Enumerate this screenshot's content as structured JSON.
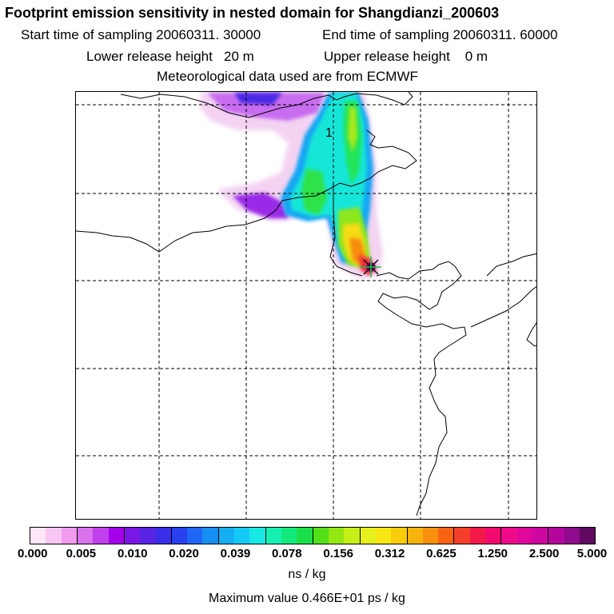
{
  "header": {
    "title": "Footprint emission sensitivity in nested domain for Shangdianzi_200603",
    "start_label": "Start time of sampling 20060311. 30000",
    "end_label": "End time of sampling 20060311. 60000",
    "lower_label": "Lower release height   20 m",
    "upper_label": "Upper release height    0 m",
    "met_label": "Meteorological data used are from ECMWF"
  },
  "map": {
    "contour_label": "1",
    "receptor_marker": "release-site"
  },
  "legend": {
    "ticks": [
      "0.000",
      "0.005",
      "0.010",
      "0.020",
      "0.039",
      "0.078",
      "0.156",
      "0.312",
      "0.625",
      "1.250",
      "2.500",
      "5.000"
    ],
    "colors": [
      "#fde6f8",
      "#f7c6f3",
      "#f09bee",
      "#d873ec",
      "#c040ec",
      "#a300e9",
      "#7a16e6",
      "#5823e5",
      "#3a2de8",
      "#2940f0",
      "#1f66f5",
      "#168ef2",
      "#16aef3",
      "#15c9f5",
      "#18e8e3",
      "#16f0b2",
      "#14ea7c",
      "#1ce049",
      "#54e019",
      "#93e813",
      "#c6ee18",
      "#e6f01c",
      "#f7e613",
      "#f9cc0c",
      "#f8b30c",
      "#f8900e",
      "#f76313",
      "#f44028",
      "#f21847",
      "#f20a6e",
      "#ee0a8b",
      "#e0079c",
      "#cf06a2",
      "#b3069c",
      "#8f0a8c",
      "#5f0a60"
    ],
    "units": "ns / kg",
    "max_value": "Maximum value  0.466E+01 ps / kg"
  }
}
